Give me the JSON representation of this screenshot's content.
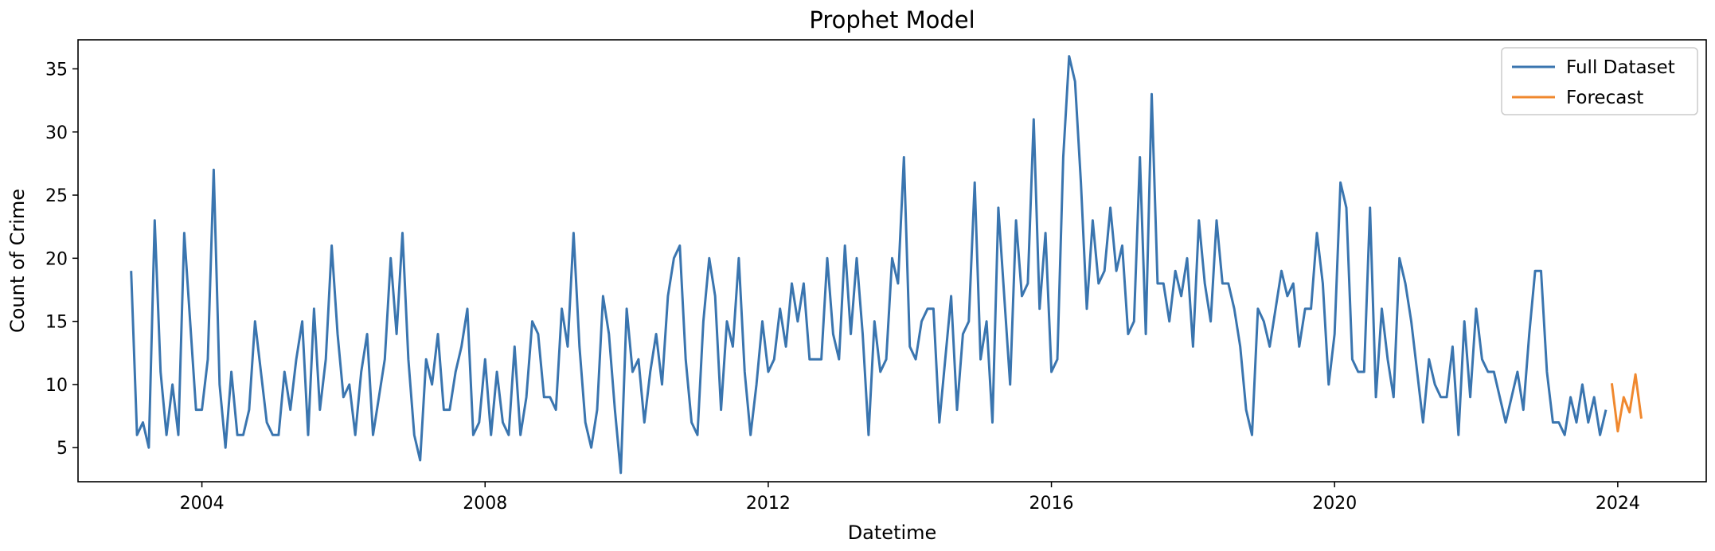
{
  "chart_data": {
    "type": "line",
    "title": "Prophet Model",
    "xlabel": "Datetime",
    "ylabel": "Count of Crime",
    "xlim": [
      "2002-04-01",
      "2025-04-01"
    ],
    "ylim": [
      2.3,
      37.3
    ],
    "x_ticks": [
      "2004",
      "2008",
      "2012",
      "2016",
      "2020",
      "2024"
    ],
    "y_ticks": [
      5,
      10,
      15,
      20,
      25,
      30,
      35
    ],
    "grid": false,
    "legend_position": "top-right",
    "x_frequency": "monthly",
    "series": [
      {
        "name": "Full Dataset",
        "color": "#3a75af",
        "start": "2003-01",
        "values": [
          19,
          6,
          7,
          5,
          23,
          11,
          6,
          10,
          6,
          22,
          15,
          8,
          8,
          12,
          27,
          10,
          5,
          11,
          6,
          6,
          8,
          15,
          11,
          7,
          6,
          6,
          11,
          8,
          12,
          15,
          6,
          16,
          8,
          12,
          21,
          14,
          9,
          10,
          6,
          11,
          14,
          6,
          9,
          12,
          20,
          14,
          22,
          12,
          6,
          4,
          12,
          10,
          14,
          8,
          8,
          11,
          13,
          16,
          6,
          7,
          12,
          6,
          11,
          7,
          6,
          13,
          6,
          9,
          15,
          14,
          9,
          9,
          8,
          16,
          13,
          22,
          13,
          7,
          5,
          8,
          17,
          14,
          8,
          3,
          16,
          11,
          12,
          7,
          11,
          14,
          10,
          17,
          20,
          21,
          12,
          7,
          6,
          15,
          20,
          17,
          8,
          15,
          13,
          20,
          11,
          6,
          10,
          15,
          11,
          12,
          16,
          13,
          18,
          15,
          18,
          12,
          12,
          12,
          20,
          14,
          12,
          21,
          14,
          20,
          14,
          6,
          15,
          11,
          12,
          20,
          18,
          28,
          13,
          12,
          15,
          16,
          16,
          7,
          12,
          17,
          8,
          14,
          15,
          26,
          12,
          15,
          7,
          24,
          17,
          10,
          23,
          17,
          18,
          31,
          16,
          22,
          11,
          12,
          28,
          36,
          34,
          26,
          16,
          23,
          18,
          19,
          24,
          19,
          21,
          14,
          15,
          28,
          14,
          33,
          18,
          18,
          15,
          19,
          17,
          20,
          13,
          23,
          18,
          15,
          23,
          18,
          18,
          16,
          13,
          8,
          6,
          16,
          15,
          13,
          16,
          19,
          17,
          18,
          13,
          16,
          16,
          22,
          18,
          10,
          14,
          26,
          24,
          12,
          11,
          11,
          24,
          9,
          16,
          12,
          9,
          20,
          18,
          15,
          11,
          7,
          12,
          10,
          9,
          9,
          13,
          6,
          15,
          9,
          16,
          12,
          11,
          11,
          9,
          7,
          9,
          11,
          8,
          14,
          19,
          19,
          11,
          7,
          7,
          6,
          9,
          7,
          10,
          7,
          9,
          6,
          8
        ]
      },
      {
        "name": "Forecast",
        "color": "#f0882e",
        "start": "2023-12",
        "values": [
          10.1,
          6.3,
          9.0,
          7.8,
          10.8,
          7.3
        ]
      }
    ]
  }
}
